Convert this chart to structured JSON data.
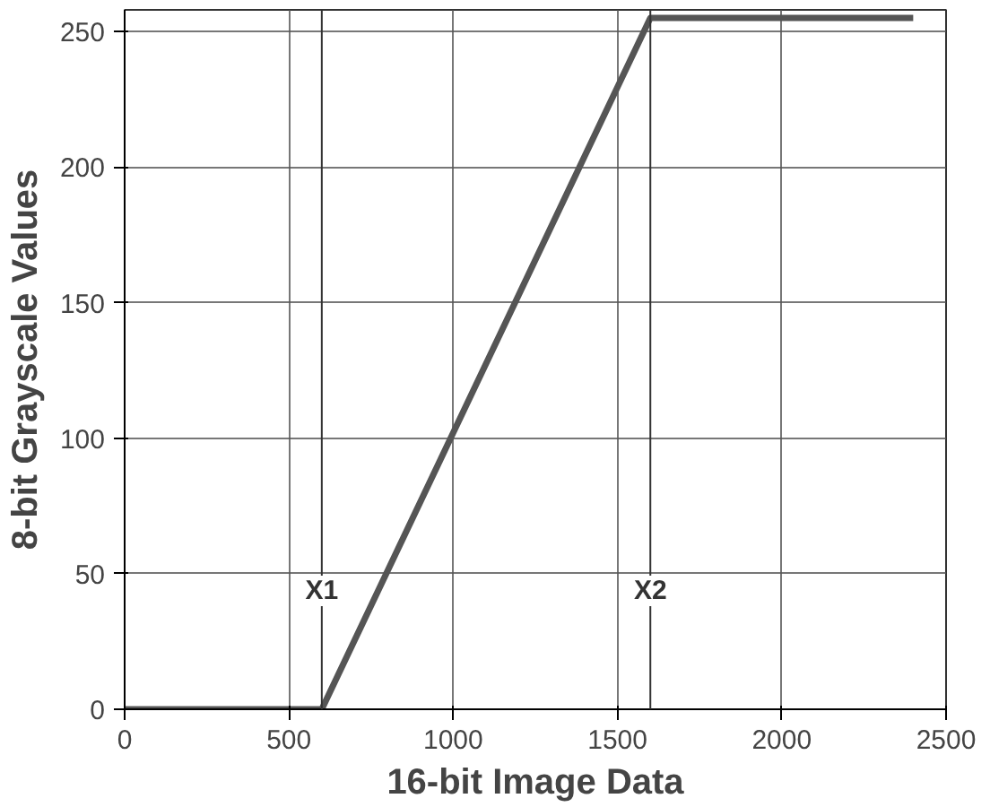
{
  "chart_data": {
    "type": "line",
    "xlabel": "16-bit Image Data",
    "ylabel": "8-bit Grayscale Values",
    "x": [
      0,
      600,
      1600,
      2400
    ],
    "series": [
      {
        "color": "#555555",
        "values": [
          0,
          0,
          255,
          255
        ]
      }
    ],
    "xlim": [
      0,
      2500
    ],
    "ylim": [
      0,
      258
    ],
    "xticks": [
      0,
      500,
      1000,
      1500,
      2000,
      2500
    ],
    "yticks": [
      0,
      50,
      100,
      150,
      200,
      250
    ],
    "grid": true,
    "marker": "none",
    "line_style": "solid",
    "ref_lines": [
      {
        "axis": "x",
        "value": 600,
        "label": "X1"
      },
      {
        "axis": "x",
        "value": 1600,
        "label": "X2"
      }
    ]
  }
}
